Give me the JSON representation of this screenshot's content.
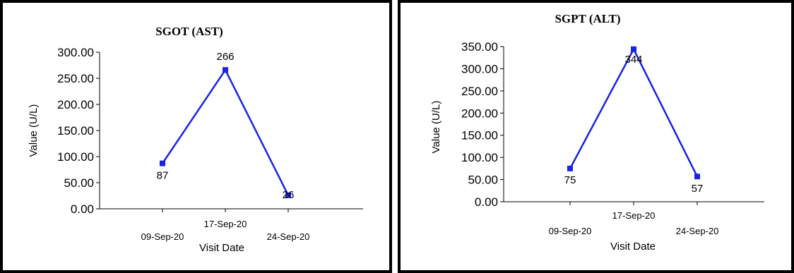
{
  "chart_data": [
    {
      "type": "line",
      "title": "SGOT (AST)",
      "xlabel": "Visit Date",
      "ylabel": "Value (U/L)",
      "categories": [
        "09-Sep-20",
        "17-Sep-20",
        "24-Sep-20"
      ],
      "values": [
        87,
        266,
        26
      ],
      "data_labels": [
        "87",
        "266",
        "26"
      ],
      "yticks": [
        "0.00",
        "50.00",
        "100.00",
        "150.00",
        "200.00",
        "250.00",
        "300.00"
      ],
      "ylim": [
        0,
        300
      ],
      "grid": false,
      "line_color": "#1a22e6"
    },
    {
      "type": "line",
      "title": "SGPT (ALT)",
      "xlabel": "Visit Date",
      "ylabel": "Value (U/L)",
      "categories": [
        "09-Sep-20",
        "17-Sep-20",
        "24-Sep-20"
      ],
      "values": [
        75,
        344,
        57
      ],
      "data_labels": [
        "75",
        "344",
        "57"
      ],
      "yticks": [
        "0.00",
        "50.00",
        "100.00",
        "150.00",
        "200.00",
        "250.00",
        "300.00",
        "350.00"
      ],
      "ylim": [
        0,
        350
      ],
      "grid": false,
      "line_color": "#1a22e6"
    }
  ]
}
